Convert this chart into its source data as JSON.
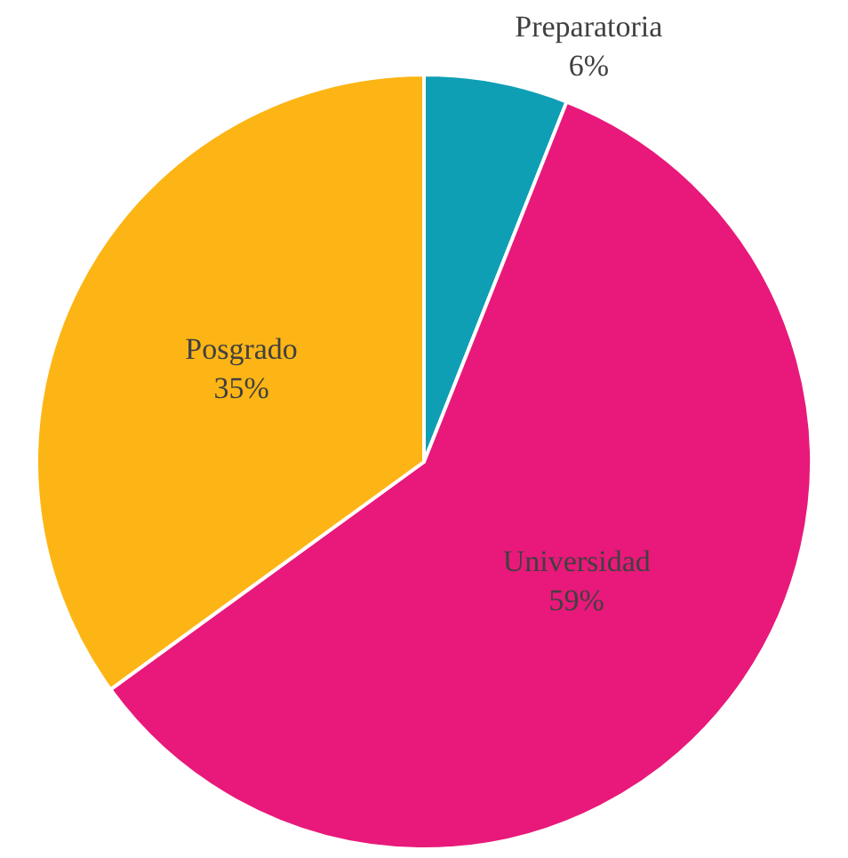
{
  "chart_data": {
    "type": "pie",
    "categories": [
      "Preparatoria",
      "Universidad",
      "Posgrado"
    ],
    "values": [
      6,
      59,
      35
    ],
    "value_labels": [
      "6%",
      "59%",
      "35%"
    ],
    "colors": [
      "#0f9fb5",
      "#e8197a",
      "#fdb515"
    ],
    "legend": false
  }
}
